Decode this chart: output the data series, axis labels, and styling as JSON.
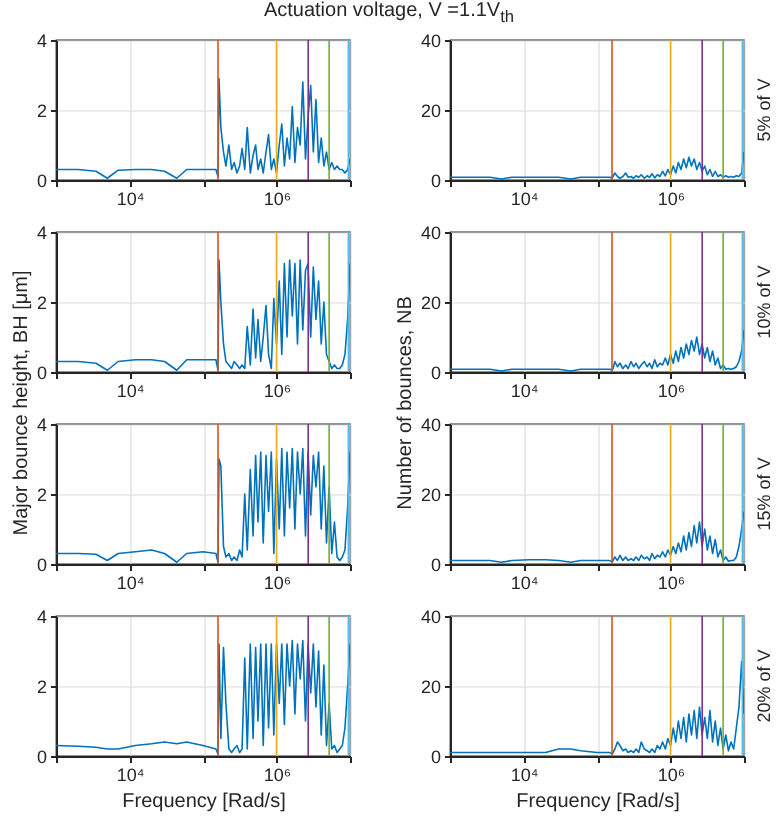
{
  "chart_data": [
    {
      "type": "line",
      "title": "Actuation voltage, V =1.1V$_{th}$",
      "x": [
        1000,
        2000,
        3500,
        5000,
        7000,
        12000,
        20000,
        30000,
        44000,
        60000,
        100000,
        150000,
        160000,
        165000,
        175000,
        190000,
        205000,
        225000,
        245000,
        265000,
        290000,
        315000,
        340000,
        370000,
        400000,
        440000,
        480000,
        520000,
        560000,
        610000,
        660000,
        720000,
        780000,
        850000,
        920000,
        1000000,
        1090000,
        1180000,
        1280000,
        1390000,
        1510000,
        1640000,
        1780000,
        1930000,
        2100000,
        2280000,
        2480000,
        2690000,
        2920000,
        3170000,
        3440000,
        3740000,
        4060000,
        4410000,
        4790000,
        5200000,
        5650000,
        6140000,
        6670000,
        7240000,
        7860000,
        8540000,
        9280000,
        10000000
      ],
      "series": [
        {
          "color": "#0072bd",
          "values": [
            0.3,
            0.3,
            0.25,
            0.05,
            0.28,
            0.3,
            0.3,
            0.25,
            0.05,
            0.3,
            0.3,
            0.3,
            0.1,
            2.9,
            1.5,
            0.8,
            0.4,
            1.0,
            0.3,
            0.5,
            0.2,
            0.4,
            0.9,
            0.3,
            1.5,
            0.2,
            0.7,
            1.0,
            0.3,
            0.6,
            0.2,
            0.8,
            1.3,
            0.3,
            0.6,
            0.2,
            1.0,
            1.6,
            0.4,
            1.2,
            0.6,
            2.1,
            0.5,
            1.5,
            1.0,
            2.8,
            0.6,
            1.8,
            2.7,
            0.8,
            2.3,
            0.5,
            1.2,
            0.4,
            0.8,
            0.3,
            0.5,
            0.3,
            0.4,
            0.3,
            0.3,
            0.2,
            0.3,
            0.6
          ]
        }
      ],
      "xlim": [
        1000,
        10000000
      ],
      "ylim": [
        0,
        4
      ],
      "xticks": [
        {
          "value": 1000,
          "label": null
        },
        {
          "value": 10000,
          "label": "10⁴"
        },
        {
          "value": 100000,
          "label": null
        },
        {
          "value": 1000000,
          "label": "10⁶"
        },
        {
          "value": 10000000,
          "label": null
        }
      ],
      "yticks": [
        0,
        2,
        4
      ],
      "log": "x",
      "grid": true,
      "ref_lines": [
        {
          "axis": "x",
          "value": 160000,
          "color": "#d95319"
        },
        {
          "axis": "x",
          "value": 1000000,
          "color": "#edb120"
        },
        {
          "axis": "x",
          "value": 2700000,
          "color": "#7e2f8e"
        },
        {
          "axis": "x",
          "value": 5200000,
          "color": "#77ac30"
        },
        {
          "axis": "x",
          "value": 9500000,
          "color": "#4dbeee"
        }
      ]
    },
    {
      "type": "line",
      "x": [
        1000,
        2000,
        3500,
        5000,
        7000,
        12000,
        20000,
        30000,
        44000,
        60000,
        100000,
        150000,
        160000,
        165000,
        175000,
        190000,
        205000,
        225000,
        245000,
        265000,
        290000,
        315000,
        340000,
        370000,
        400000,
        440000,
        480000,
        520000,
        560000,
        610000,
        660000,
        720000,
        780000,
        850000,
        920000,
        1000000,
        1090000,
        1180000,
        1280000,
        1390000,
        1510000,
        1640000,
        1780000,
        1930000,
        2100000,
        2280000,
        2480000,
        2690000,
        2920000,
        3170000,
        3440000,
        3740000,
        4060000,
        4410000,
        4790000,
        5200000,
        5650000,
        6140000,
        6670000,
        7240000,
        7860000,
        8540000,
        9280000,
        10000000
      ],
      "series": [
        {
          "color": "#0072bd",
          "values": [
            0.8,
            0.8,
            0.8,
            0.3,
            0.8,
            0.8,
            0.8,
            0.8,
            0.3,
            0.8,
            0.8,
            0.8,
            0.5,
            1.0,
            2.0,
            1.0,
            0.5,
            1.0,
            2.0,
            0.8,
            1.0,
            0.5,
            1.2,
            0.8,
            1.5,
            0.5,
            1.2,
            0.8,
            1.8,
            0.6,
            1.5,
            1.0,
            2.5,
            1.2,
            3.0,
            1.5,
            4.0,
            2.0,
            5.0,
            3.0,
            6.0,
            3.5,
            6.5,
            4.0,
            6.0,
            3.0,
            5.0,
            2.5,
            4.0,
            1.5,
            3.0,
            1.0,
            2.5,
            1.0,
            1.5,
            0.8,
            1.2,
            0.8,
            1.0,
            0.8,
            1.2,
            1.0,
            2.0,
            8.0
          ]
        }
      ],
      "xlim": [
        1000,
        10000000
      ],
      "ylim": [
        0,
        40
      ],
      "xticks": [
        {
          "value": 1000,
          "label": null
        },
        {
          "value": 10000,
          "label": "10⁴"
        },
        {
          "value": 100000,
          "label": null
        },
        {
          "value": 1000000,
          "label": "10⁶"
        },
        {
          "value": 10000000,
          "label": null
        }
      ],
      "yticks": [
        0,
        20,
        40
      ],
      "log": "x",
      "grid": true,
      "annotations": [
        "5% of V"
      ],
      "ref_lines": [
        {
          "axis": "x",
          "value": 160000,
          "color": "#d95319"
        },
        {
          "axis": "x",
          "value": 1000000,
          "color": "#edb120"
        },
        {
          "axis": "x",
          "value": 2700000,
          "color": "#7e2f8e"
        },
        {
          "axis": "x",
          "value": 5200000,
          "color": "#77ac30"
        },
        {
          "axis": "x",
          "value": 9500000,
          "color": "#4dbeee"
        }
      ]
    },
    {
      "type": "line",
      "ylabel": "Major bounce height, BH [μm]",
      "x": [
        1000,
        2000,
        3500,
        5000,
        7000,
        12000,
        20000,
        30000,
        44000,
        60000,
        100000,
        150000,
        160000,
        165000,
        175000,
        190000,
        205000,
        225000,
        245000,
        265000,
        290000,
        315000,
        340000,
        370000,
        400000,
        440000,
        480000,
        520000,
        560000,
        610000,
        660000,
        720000,
        780000,
        850000,
        920000,
        1000000,
        1090000,
        1180000,
        1280000,
        1390000,
        1510000,
        1640000,
        1780000,
        1930000,
        2100000,
        2280000,
        2480000,
        2690000,
        2920000,
        3170000,
        3440000,
        3740000,
        4060000,
        4410000,
        4790000,
        5200000,
        5650000,
        6140000,
        6670000,
        7240000,
        7860000,
        8540000,
        9280000,
        10000000
      ],
      "series": [
        {
          "color": "#0072bd",
          "values": [
            0.3,
            0.3,
            0.25,
            0.05,
            0.3,
            0.35,
            0.35,
            0.3,
            0.05,
            0.35,
            0.35,
            0.35,
            0.05,
            3.2,
            2.0,
            0.8,
            0.3,
            0.2,
            0.1,
            0.3,
            0.2,
            0.1,
            0.2,
            0.1,
            1.3,
            0.2,
            1.8,
            0.4,
            1.5,
            0.3,
            1.0,
            1.9,
            0.5,
            0.1,
            2.1,
            0.8,
            2.6,
            0.5,
            3.1,
            1.0,
            3.2,
            1.6,
            3.1,
            0.8,
            3.2,
            1.2,
            2.9,
            3.1,
            1.0,
            3.0,
            1.5,
            2.6,
            0.8,
            2.0,
            0.5,
            0.3,
            0.1,
            0.2,
            0.1,
            0.1,
            0.2,
            0.5,
            1.5,
            3.1
          ]
        }
      ],
      "xlim": [
        1000,
        10000000
      ],
      "ylim": [
        0,
        4
      ],
      "xticks": [
        {
          "value": 1000,
          "label": null
        },
        {
          "value": 10000,
          "label": "10⁴"
        },
        {
          "value": 100000,
          "label": null
        },
        {
          "value": 1000000,
          "label": "10⁶"
        },
        {
          "value": 10000000,
          "label": null
        }
      ],
      "yticks": [
        0,
        2,
        4
      ],
      "log": "x",
      "grid": true,
      "ref_lines": [
        {
          "axis": "x",
          "value": 160000,
          "color": "#d95319"
        },
        {
          "axis": "x",
          "value": 1000000,
          "color": "#edb120"
        },
        {
          "axis": "x",
          "value": 2700000,
          "color": "#7e2f8e"
        },
        {
          "axis": "x",
          "value": 5200000,
          "color": "#77ac30"
        },
        {
          "axis": "x",
          "value": 9500000,
          "color": "#4dbeee"
        }
      ]
    },
    {
      "type": "line",
      "ylabel": "Number of bounces, NB",
      "x": [
        1000,
        2000,
        3500,
        5000,
        7000,
        12000,
        20000,
        30000,
        44000,
        60000,
        100000,
        150000,
        160000,
        165000,
        175000,
        190000,
        205000,
        225000,
        245000,
        265000,
        290000,
        315000,
        340000,
        370000,
        400000,
        440000,
        480000,
        520000,
        560000,
        610000,
        660000,
        720000,
        780000,
        850000,
        920000,
        1000000,
        1090000,
        1180000,
        1280000,
        1390000,
        1510000,
        1640000,
        1780000,
        1930000,
        2100000,
        2280000,
        2480000,
        2690000,
        2920000,
        3170000,
        3440000,
        3740000,
        4060000,
        4410000,
        4790000,
        5200000,
        5650000,
        6140000,
        6670000,
        7240000,
        7860000,
        8540000,
        9280000,
        10000000
      ],
      "series": [
        {
          "color": "#0072bd",
          "values": [
            0.8,
            0.8,
            0.8,
            0.3,
            0.8,
            0.8,
            0.8,
            0.8,
            0.3,
            0.8,
            0.8,
            0.8,
            0.5,
            1.0,
            3.0,
            1.5,
            2.5,
            1.0,
            2.0,
            1.0,
            3.0,
            1.5,
            2.5,
            1.0,
            2.0,
            3.0,
            1.5,
            2.5,
            1.0,
            3.5,
            1.5,
            2.5,
            2.0,
            4.0,
            2.0,
            5.0,
            2.5,
            6.0,
            3.0,
            7.0,
            4.0,
            8.0,
            5.0,
            9.0,
            6.0,
            10.0,
            5.0,
            8.0,
            4.0,
            7.0,
            3.0,
            6.0,
            2.0,
            4.0,
            1.0,
            2.0,
            0.8,
            1.0,
            0.8,
            1.0,
            1.5,
            3.0,
            6.0,
            12.0
          ]
        }
      ],
      "xlim": [
        1000,
        10000000
      ],
      "ylim": [
        0,
        40
      ],
      "xticks": [
        {
          "value": 1000,
          "label": null
        },
        {
          "value": 10000,
          "label": "10⁴"
        },
        {
          "value": 100000,
          "label": null
        },
        {
          "value": 1000000,
          "label": "10⁶"
        },
        {
          "value": 10000000,
          "label": null
        }
      ],
      "yticks": [
        0,
        20,
        40
      ],
      "log": "x",
      "grid": true,
      "annotations": [
        "10% of V"
      ],
      "ref_lines": [
        {
          "axis": "x",
          "value": 160000,
          "color": "#d95319"
        },
        {
          "axis": "x",
          "value": 1000000,
          "color": "#edb120"
        },
        {
          "axis": "x",
          "value": 2700000,
          "color": "#7e2f8e"
        },
        {
          "axis": "x",
          "value": 5200000,
          "color": "#77ac30"
        },
        {
          "axis": "x",
          "value": 9500000,
          "color": "#4dbeee"
        }
      ]
    },
    {
      "type": "line",
      "x": [
        1000,
        2000,
        3500,
        5000,
        7000,
        12000,
        20000,
        30000,
        44000,
        60000,
        100000,
        150000,
        160000,
        165000,
        175000,
        190000,
        205000,
        225000,
        245000,
        265000,
        290000,
        315000,
        340000,
        370000,
        400000,
        440000,
        480000,
        520000,
        560000,
        610000,
        660000,
        720000,
        780000,
        850000,
        920000,
        1000000,
        1090000,
        1180000,
        1280000,
        1390000,
        1510000,
        1640000,
        1780000,
        1930000,
        2100000,
        2280000,
        2480000,
        2690000,
        2920000,
        3170000,
        3440000,
        3740000,
        4060000,
        4410000,
        4790000,
        5200000,
        5650000,
        6140000,
        6670000,
        7240000,
        7860000,
        8540000,
        9280000,
        10000000
      ],
      "series": [
        {
          "color": "#0072bd",
          "values": [
            0.3,
            0.3,
            0.28,
            0.1,
            0.3,
            0.35,
            0.4,
            0.3,
            0.05,
            0.3,
            0.35,
            0.3,
            0.05,
            3.0,
            2.8,
            0.5,
            0.2,
            0.3,
            0.1,
            0.2,
            0.1,
            0.4,
            0.2,
            2.0,
            0.4,
            2.7,
            0.8,
            3.1,
            1.2,
            3.2,
            0.6,
            3.1,
            1.5,
            3.2,
            0.3,
            3.0,
            1.0,
            3.3,
            0.8,
            3.2,
            1.6,
            3.3,
            1.0,
            3.2,
            2.0,
            3.3,
            0.8,
            3.2,
            1.4,
            3.1,
            2.2,
            3.2,
            1.0,
            2.8,
            0.6,
            2.2,
            0.3,
            1.2,
            0.2,
            0.1,
            0.2,
            0.4,
            1.6,
            3.2
          ]
        }
      ],
      "xlim": [
        1000,
        10000000
      ],
      "ylim": [
        0,
        4
      ],
      "xticks": [
        {
          "value": 1000,
          "label": null
        },
        {
          "value": 10000,
          "label": "10⁴"
        },
        {
          "value": 100000,
          "label": null
        },
        {
          "value": 1000000,
          "label": "10⁶"
        },
        {
          "value": 10000000,
          "label": null
        }
      ],
      "yticks": [
        0,
        2,
        4
      ],
      "log": "x",
      "grid": true,
      "ref_lines": [
        {
          "axis": "x",
          "value": 160000,
          "color": "#d95319"
        },
        {
          "axis": "x",
          "value": 1000000,
          "color": "#edb120"
        },
        {
          "axis": "x",
          "value": 2700000,
          "color": "#7e2f8e"
        },
        {
          "axis": "x",
          "value": 5200000,
          "color": "#77ac30"
        },
        {
          "axis": "x",
          "value": 9500000,
          "color": "#4dbeee"
        }
      ]
    },
    {
      "type": "line",
      "x": [
        1000,
        2000,
        3500,
        5000,
        7000,
        12000,
        20000,
        30000,
        44000,
        60000,
        100000,
        150000,
        160000,
        165000,
        175000,
        190000,
        205000,
        225000,
        245000,
        265000,
        290000,
        315000,
        340000,
        370000,
        400000,
        440000,
        480000,
        520000,
        560000,
        610000,
        660000,
        720000,
        780000,
        850000,
        920000,
        1000000,
        1090000,
        1180000,
        1280000,
        1390000,
        1510000,
        1640000,
        1780000,
        1930000,
        2100000,
        2280000,
        2480000,
        2690000,
        2920000,
        3170000,
        3440000,
        3740000,
        4060000,
        4410000,
        4790000,
        5200000,
        5650000,
        6140000,
        6670000,
        7240000,
        7860000,
        8540000,
        9280000,
        10000000
      ],
      "series": [
        {
          "color": "#0072bd",
          "values": [
            1.0,
            1.0,
            1.0,
            0.5,
            1.0,
            1.2,
            1.2,
            1.0,
            0.5,
            1.0,
            1.0,
            1.0,
            0.5,
            1.0,
            2.0,
            1.0,
            2.5,
            1.0,
            2.0,
            1.0,
            1.5,
            1.0,
            2.0,
            1.0,
            2.5,
            1.5,
            2.0,
            1.0,
            3.0,
            1.5,
            2.5,
            2.0,
            3.5,
            2.0,
            4.0,
            2.5,
            5.0,
            3.0,
            6.0,
            3.5,
            8.0,
            4.0,
            9.0,
            5.0,
            11.0,
            6.0,
            12.0,
            5.0,
            10.0,
            4.0,
            8.0,
            3.0,
            7.0,
            2.0,
            4.0,
            1.0,
            2.0,
            0.8,
            1.0,
            1.0,
            2.0,
            5.0,
            10.0,
            15.0
          ]
        }
      ],
      "xlim": [
        1000,
        10000000
      ],
      "ylim": [
        0,
        40
      ],
      "xticks": [
        {
          "value": 1000,
          "label": null
        },
        {
          "value": 10000,
          "label": "10⁴"
        },
        {
          "value": 100000,
          "label": null
        },
        {
          "value": 1000000,
          "label": "10⁶"
        },
        {
          "value": 10000000,
          "label": null
        }
      ],
      "yticks": [
        0,
        20,
        40
      ],
      "log": "x",
      "grid": true,
      "annotations": [
        "15% of V"
      ],
      "ref_lines": [
        {
          "axis": "x",
          "value": 160000,
          "color": "#d95319"
        },
        {
          "axis": "x",
          "value": 1000000,
          "color": "#edb120"
        },
        {
          "axis": "x",
          "value": 2700000,
          "color": "#7e2f8e"
        },
        {
          "axis": "x",
          "value": 5200000,
          "color": "#77ac30"
        },
        {
          "axis": "x",
          "value": 9500000,
          "color": "#4dbeee"
        }
      ]
    },
    {
      "type": "line",
      "xlabel": "Frequency [Rad/s]",
      "x": [
        1000,
        2000,
        3500,
        5000,
        7000,
        12000,
        20000,
        30000,
        44000,
        60000,
        100000,
        150000,
        160000,
        165000,
        175000,
        190000,
        205000,
        225000,
        245000,
        265000,
        290000,
        315000,
        340000,
        370000,
        400000,
        440000,
        480000,
        520000,
        560000,
        610000,
        660000,
        720000,
        780000,
        850000,
        920000,
        1000000,
        1090000,
        1180000,
        1280000,
        1390000,
        1510000,
        1640000,
        1780000,
        1930000,
        2100000,
        2280000,
        2480000,
        2690000,
        2920000,
        3170000,
        3440000,
        3740000,
        4060000,
        4410000,
        4790000,
        5200000,
        5650000,
        6140000,
        6670000,
        7240000,
        7860000,
        8540000,
        9280000,
        10000000
      ],
      "series": [
        {
          "color": "#0072bd",
          "values": [
            0.3,
            0.28,
            0.25,
            0.2,
            0.2,
            0.3,
            0.35,
            0.4,
            0.35,
            0.4,
            0.3,
            0.2,
            0.05,
            3.2,
            0.5,
            3.1,
            1.5,
            0.2,
            0.1,
            0.2,
            0.3,
            0.1,
            0.2,
            2.8,
            0.2,
            3.2,
            0.5,
            3.1,
            1.0,
            3.2,
            0.3,
            3.2,
            0.8,
            3.2,
            0.6,
            3.2,
            1.5,
            3.2,
            0.9,
            3.2,
            2.0,
            3.3,
            1.2,
            3.2,
            2.2,
            3.3,
            1.0,
            3.2,
            1.8,
            3.2,
            1.4,
            3.0,
            0.6,
            2.6,
            0.3,
            1.5,
            0.2,
            0.3,
            0.1,
            0.2,
            0.3,
            0.8,
            2.0,
            3.2
          ]
        }
      ],
      "xlim": [
        1000,
        10000000
      ],
      "ylim": [
        0,
        4
      ],
      "xticks": [
        {
          "value": 1000,
          "label": null
        },
        {
          "value": 10000,
          "label": "10⁴"
        },
        {
          "value": 100000,
          "label": null
        },
        {
          "value": 1000000,
          "label": "10⁶"
        },
        {
          "value": 10000000,
          "label": null
        }
      ],
      "yticks": [
        0,
        2,
        4
      ],
      "log": "x",
      "grid": true,
      "ref_lines": [
        {
          "axis": "x",
          "value": 160000,
          "color": "#d95319"
        },
        {
          "axis": "x",
          "value": 1000000,
          "color": "#edb120"
        },
        {
          "axis": "x",
          "value": 2700000,
          "color": "#7e2f8e"
        },
        {
          "axis": "x",
          "value": 5200000,
          "color": "#77ac30"
        },
        {
          "axis": "x",
          "value": 9500000,
          "color": "#4dbeee"
        }
      ]
    },
    {
      "type": "line",
      "xlabel": "Frequency [Rad/s]",
      "x": [
        1000,
        2000,
        3500,
        5000,
        7000,
        12000,
        20000,
        30000,
        44000,
        60000,
        100000,
        150000,
        160000,
        165000,
        175000,
        190000,
        205000,
        225000,
        245000,
        265000,
        290000,
        315000,
        340000,
        370000,
        400000,
        440000,
        480000,
        520000,
        560000,
        610000,
        660000,
        720000,
        780000,
        850000,
        920000,
        1000000,
        1090000,
        1180000,
        1280000,
        1390000,
        1510000,
        1640000,
        1780000,
        1930000,
        2100000,
        2280000,
        2480000,
        2690000,
        2920000,
        3170000,
        3440000,
        3740000,
        4060000,
        4410000,
        4790000,
        5200000,
        5650000,
        6140000,
        6670000,
        7240000,
        7860000,
        8540000,
        9280000,
        10000000
      ],
      "series": [
        {
          "color": "#0072bd",
          "values": [
            1.0,
            1.0,
            1.0,
            1.0,
            1.0,
            1.0,
            1.0,
            2.0,
            2.0,
            1.5,
            1.0,
            1.0,
            0.5,
            1.0,
            2.0,
            4.0,
            3.0,
            1.5,
            2.0,
            1.0,
            1.5,
            1.0,
            2.0,
            1.0,
            4.0,
            2.0,
            1.5,
            1.0,
            2.0,
            1.0,
            3.0,
            2.0,
            4.0,
            2.0,
            5.0,
            3.0,
            8.0,
            4.0,
            10.0,
            5.0,
            11.0,
            4.0,
            12.0,
            6.0,
            13.0,
            5.0,
            14.0,
            6.0,
            11.0,
            5.0,
            13.0,
            4.0,
            10.0,
            3.0,
            8.0,
            2.0,
            6.0,
            1.5,
            4.0,
            2.0,
            8.0,
            14.0,
            27.0,
            12.0
          ]
        }
      ],
      "xlim": [
        1000,
        10000000
      ],
      "ylim": [
        0,
        40
      ],
      "xticks": [
        {
          "value": 1000,
          "label": null
        },
        {
          "value": 10000,
          "label": "10⁴"
        },
        {
          "value": 100000,
          "label": null
        },
        {
          "value": 1000000,
          "label": "10⁶"
        },
        {
          "value": 10000000,
          "label": null
        }
      ],
      "yticks": [
        0,
        20,
        40
      ],
      "log": "x",
      "grid": true,
      "annotations": [
        "20% of V"
      ],
      "ref_lines": [
        {
          "axis": "x",
          "value": 160000,
          "color": "#d95319"
        },
        {
          "axis": "x",
          "value": 1000000,
          "color": "#edb120"
        },
        {
          "axis": "x",
          "value": 2700000,
          "color": "#7e2f8e"
        },
        {
          "axis": "x",
          "value": 5200000,
          "color": "#77ac30"
        },
        {
          "axis": "x",
          "value": 9500000,
          "color": "#4dbeee"
        }
      ]
    }
  ]
}
